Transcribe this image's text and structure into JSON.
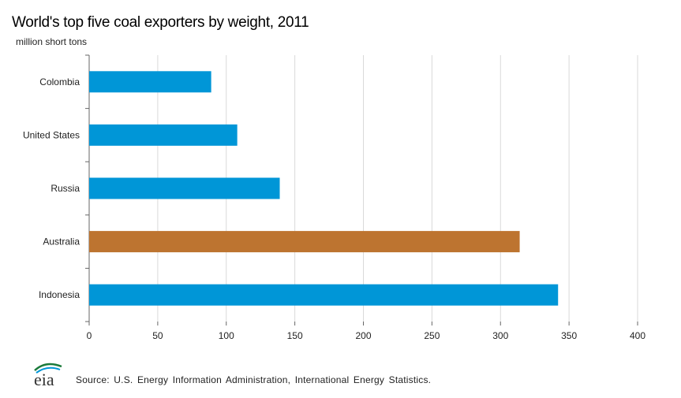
{
  "title": "World's top five coal exporters by weight, 2011",
  "chart_data": {
    "type": "bar",
    "orientation": "horizontal",
    "title": "World's top five coal exporters by weight, 2011",
    "ylabel": "million short tons",
    "xlabel": "",
    "categories": [
      "Colombia",
      "United States",
      "Russia",
      "Australia",
      "Indonesia"
    ],
    "values": [
      89,
      108,
      139,
      314,
      342
    ],
    "bar_colors": [
      "#0096d7",
      "#0096d7",
      "#0096d7",
      "#bd7430",
      "#0096d7"
    ],
    "xlim": [
      0,
      400
    ],
    "xticks": [
      0,
      50,
      100,
      150,
      200,
      250,
      300,
      350,
      400
    ],
    "grid": "vertical",
    "legend": "none"
  },
  "footer": {
    "logo_text": "eia",
    "source": "Source:  U.S. Energy Information  Administration, International  Energy Statistics."
  },
  "colors": {
    "bar": "#0096d7",
    "highlight": "#bd7430",
    "grid": "#d9d9d9"
  }
}
